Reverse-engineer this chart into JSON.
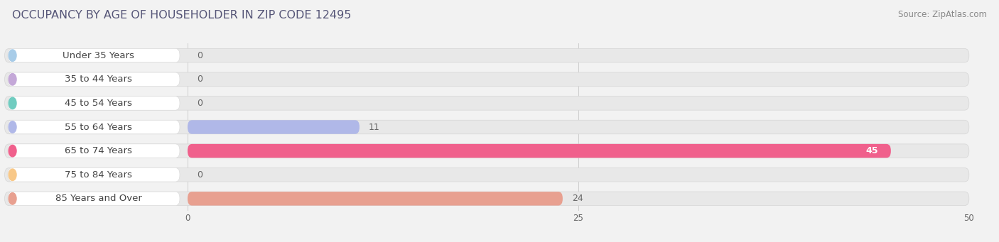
{
  "title": "OCCUPANCY BY AGE OF HOUSEHOLDER IN ZIP CODE 12495",
  "source": "Source: ZipAtlas.com",
  "categories": [
    "Under 35 Years",
    "35 to 44 Years",
    "45 to 54 Years",
    "55 to 64 Years",
    "65 to 74 Years",
    "75 to 84 Years",
    "85 Years and Over"
  ],
  "values": [
    0,
    0,
    0,
    11,
    45,
    0,
    24
  ],
  "bar_colors": [
    "#a8cce8",
    "#c4a8d8",
    "#70ccc0",
    "#b0b8e8",
    "#f0608c",
    "#f8c888",
    "#e8a090"
  ],
  "xlim_data": [
    0,
    50
  ],
  "xticks": [
    0,
    25,
    50
  ],
  "bg_color": "#f2f2f2",
  "bar_bg_color": "#e8e8e8",
  "label_bg_color": "#ffffff",
  "title_fontsize": 11.5,
  "label_fontsize": 9.5,
  "value_fontsize": 9,
  "source_fontsize": 8.5
}
